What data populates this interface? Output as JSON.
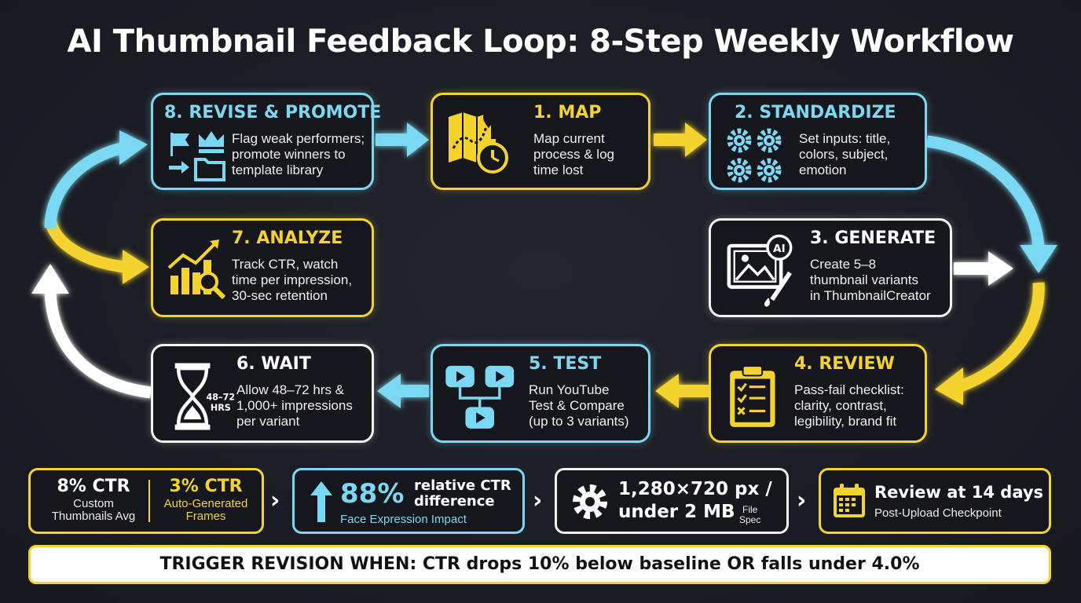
{
  "title": "AI Thumbnail Feedback Loop: 8-Step Weekly Workflow",
  "colors": {
    "blue": "#7ad8f2",
    "yellow": "#f5d32e",
    "white": "#f2f2f2",
    "background": "#1b1d24"
  },
  "steps": {
    "s1": {
      "title": "1. MAP",
      "lines": [
        "Map current",
        "process & log",
        "time lost"
      ],
      "icon": "map-stopwatch-icon"
    },
    "s2": {
      "title": "2. STANDARDIZE",
      "lines": [
        "Set inputs: title,",
        "colors, subject,",
        "emotion"
      ],
      "icon": "gears-icon"
    },
    "s3": {
      "title": "3. GENERATE",
      "lines": [
        "Create 5–8",
        "thumbnail variants",
        "in ThumbnailCreator"
      ],
      "icon": "ai-image-brush-icon",
      "icon_label": "AI"
    },
    "s4": {
      "title": "4. REVIEW",
      "lines": [
        "Pass-fail checklist:",
        "clarity, contrast,",
        "legibility, brand fit"
      ],
      "icon": "clipboard-checklist-icon"
    },
    "s5": {
      "title": "5. TEST",
      "lines": [
        "Run YouTube",
        "Test & Compare",
        "(up to 3 variants)"
      ],
      "icon": "video-variants-icon"
    },
    "s6": {
      "title": "6. WAIT",
      "lines": [
        "Allow 48–72 hrs &",
        "1,000+ impressions",
        "per variant"
      ],
      "icon": "hourglass-icon",
      "icon_label_1": "48–72",
      "icon_label_2": "HRS"
    },
    "s7": {
      "title": "7. ANALYZE",
      "lines": [
        "Track CTR, watch",
        "time per impression,",
        "30-sec retention"
      ],
      "icon": "chart-magnifier-icon"
    },
    "s8": {
      "title": "8. REVISE & PROMOTE",
      "lines": [
        "Flag weak performers;",
        "promote winners to",
        "template library"
      ],
      "icon": "flag-crown-folder-icon"
    }
  },
  "stats": {
    "ctr_custom": {
      "value": "8% CTR",
      "label_1": "Custom",
      "label_2": "Thumbnails Avg"
    },
    "ctr_auto": {
      "value": "3% CTR",
      "label_1": "Auto-Generated",
      "label_2": "Frames"
    },
    "face": {
      "value": "88%",
      "label_1": "relative CTR",
      "label_2": "difference",
      "sub": "Face Expression Impact",
      "icon": "arrow-up-icon"
    },
    "spec": {
      "line_1": "1,280×720 px /",
      "line_2": "under 2 MB",
      "sub_1": "File",
      "sub_2": "Spec",
      "icon": "gear-icon"
    },
    "review": {
      "value": "Review at 14 days",
      "sub": "Post-Upload Checkpoint",
      "icon": "calendar-icon"
    }
  },
  "separator": "›",
  "banner": "TRIGGER REVISION WHEN: CTR drops 10% below baseline OR falls under 4.0%"
}
